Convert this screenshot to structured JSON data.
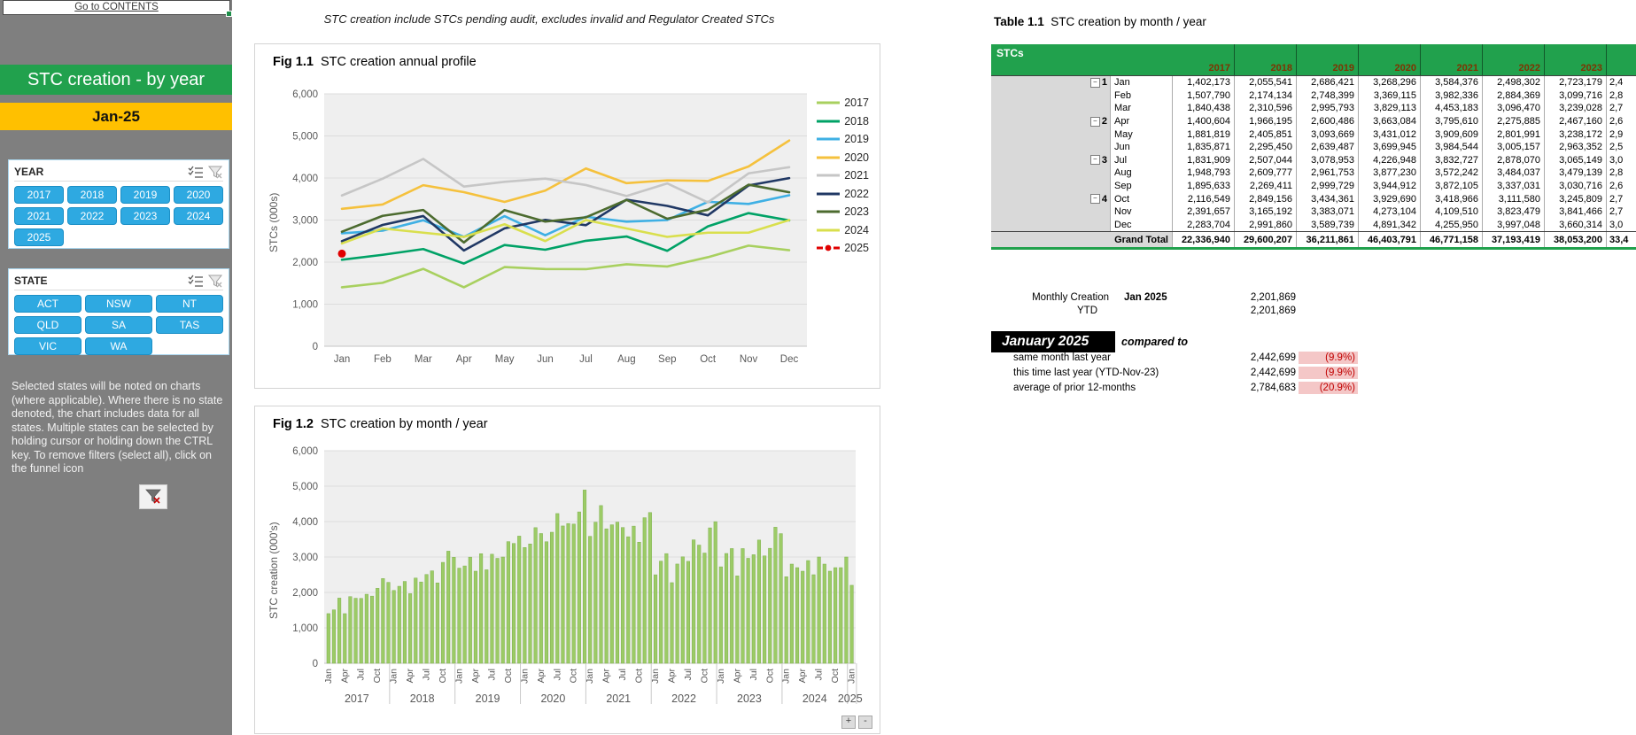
{
  "sidebar": {
    "contents_link": "Go to CONTENTS",
    "title": "STC creation - by year",
    "period": "Jan-25",
    "year_slicer": {
      "label": "YEAR",
      "options": [
        "2017",
        "2018",
        "2019",
        "2020",
        "2021",
        "2022",
        "2023",
        "2024",
        "2025"
      ]
    },
    "state_slicer": {
      "label": "STATE",
      "options": [
        "ACT",
        "NSW",
        "NT",
        "QLD",
        "SA",
        "TAS",
        "VIC",
        "WA"
      ]
    },
    "note": "Selected states will be noted on charts (where applicable).  Where there is no state denoted, the chart includes data for all states. Multiple states can be selected by holding cursor or holding down the CTRL key.  To remove filters (select all), click on the funnel icon"
  },
  "disclaimer": "STC creation include STCs pending audit, excludes invalid and Regulator Created STCs",
  "fig11": {
    "label": "Fig 1.1",
    "title": "STC creation annual profile",
    "ylabel": "STCs (000s)"
  },
  "fig12": {
    "label": "Fig 1.2",
    "title": "STC creation by month / year",
    "ylabel": "STC creation (000's)",
    "zoom_in": "+",
    "zoom_out": "-"
  },
  "table": {
    "label": "Table 1.1",
    "title": "STC creation by month / year",
    "corner": "STCs",
    "years": [
      "2017",
      "2018",
      "2019",
      "2020",
      "2021",
      "2022",
      "2023"
    ],
    "rows": [
      {
        "month": "Jan",
        "quarter": "1",
        "values": [
          "1,402,173",
          "2,055,541",
          "2,686,421",
          "3,268,296",
          "3,584,376",
          "2,498,302",
          "2,723,179"
        ],
        "clipped": "2,4"
      },
      {
        "month": "Feb",
        "quarter": "",
        "values": [
          "1,507,790",
          "2,174,134",
          "2,748,399",
          "3,369,115",
          "3,982,336",
          "2,884,369",
          "3,099,716"
        ],
        "clipped": "2,8"
      },
      {
        "month": "Mar",
        "quarter": "",
        "values": [
          "1,840,438",
          "2,310,596",
          "2,995,793",
          "3,829,113",
          "4,453,183",
          "3,096,470",
          "3,239,028"
        ],
        "clipped": "2,7"
      },
      {
        "month": "Apr",
        "quarter": "2",
        "values": [
          "1,400,604",
          "1,966,195",
          "2,600,486",
          "3,663,084",
          "3,795,610",
          "2,275,885",
          "2,467,160"
        ],
        "clipped": "2,6"
      },
      {
        "month": "May",
        "quarter": "",
        "values": [
          "1,881,819",
          "2,405,851",
          "3,093,669",
          "3,431,012",
          "3,909,609",
          "2,801,991",
          "3,238,172"
        ],
        "clipped": "2,9"
      },
      {
        "month": "Jun",
        "quarter": "",
        "values": [
          "1,835,871",
          "2,295,450",
          "2,639,487",
          "3,699,945",
          "3,984,544",
          "3,005,157",
          "2,963,352"
        ],
        "clipped": "2,5"
      },
      {
        "month": "Jul",
        "quarter": "3",
        "values": [
          "1,831,909",
          "2,507,044",
          "3,078,953",
          "4,226,948",
          "3,832,727",
          "2,878,070",
          "3,065,149"
        ],
        "clipped": "3,0"
      },
      {
        "month": "Aug",
        "quarter": "",
        "values": [
          "1,948,793",
          "2,609,777",
          "2,961,753",
          "3,877,230",
          "3,572,242",
          "3,484,037",
          "3,479,139"
        ],
        "clipped": "2,8"
      },
      {
        "month": "Sep",
        "quarter": "",
        "values": [
          "1,895,633",
          "2,269,411",
          "2,999,729",
          "3,944,912",
          "3,872,105",
          "3,337,031",
          "3,030,716"
        ],
        "clipped": "2,6"
      },
      {
        "month": "Oct",
        "quarter": "4",
        "values": [
          "2,116,549",
          "2,849,156",
          "3,434,361",
          "3,929,690",
          "3,418,966",
          "3,111,580",
          "3,245,809"
        ],
        "clipped": "2,7"
      },
      {
        "month": "Nov",
        "quarter": "",
        "values": [
          "2,391,657",
          "3,165,192",
          "3,383,071",
          "4,273,104",
          "4,109,510",
          "3,823,479",
          "3,841,466"
        ],
        "clipped": "2,7"
      },
      {
        "month": "Dec",
        "quarter": "",
        "values": [
          "2,283,704",
          "2,991,860",
          "3,589,739",
          "4,891,342",
          "4,255,950",
          "3,997,048",
          "3,660,314"
        ],
        "clipped": "3,0"
      }
    ],
    "grand_total_label": "Grand Total",
    "grand_totals": [
      "22,336,940",
      "29,600,207",
      "36,211,861",
      "46,403,791",
      "46,771,158",
      "37,193,419",
      "38,053,200"
    ],
    "clipped_total": "33,4"
  },
  "summary": {
    "monthly_label": "Monthly Creation",
    "monthly_period": "Jan 2025",
    "monthly_value": "2,201,869",
    "ytd_label": "YTD",
    "ytd_value": "2,201,869",
    "compare_header": "January 2025",
    "compare_suffix": "compared to",
    "rows": [
      {
        "label": "same month last year",
        "value": "2,442,699",
        "pct": "(9.9%)"
      },
      {
        "label": "this time last year (YTD-Nov-23)",
        "value": "2,442,699",
        "pct": "(9.9%)"
      },
      {
        "label": "average of prior 12-months",
        "value": "2,784,683",
        "pct": "(20.9%)"
      }
    ],
    "pct_bg": "#f4c7c7",
    "pct_color": "#c00000"
  },
  "colors": {
    "banner_green": "#21a14d",
    "banner_orange": "#ffc000",
    "slicer_blue": "#2ea9e1",
    "sidebar_gray": "#7f7f7f",
    "bar_green": "#9ccb66"
  },
  "chart_data": [
    {
      "id": "fig11",
      "type": "line",
      "title": "STC creation annual profile",
      "xlabel": "",
      "ylabel": "STCs (000s)",
      "categories": [
        "Jan",
        "Feb",
        "Mar",
        "Apr",
        "May",
        "Jun",
        "Jul",
        "Aug",
        "Sep",
        "Oct",
        "Nov",
        "Dec"
      ],
      "ylim": [
        0,
        6000
      ],
      "grid": true,
      "legend_position": "right",
      "series": [
        {
          "name": "2017",
          "color": "#a8d05f",
          "values": [
            1402,
            1508,
            1840,
            1401,
            1882,
            1836,
            1832,
            1949,
            1896,
            2117,
            2392,
            2284
          ]
        },
        {
          "name": "2018",
          "color": "#00a266",
          "values": [
            2056,
            2174,
            2311,
            1966,
            2406,
            2295,
            2507,
            2610,
            2269,
            2849,
            3165,
            2992
          ]
        },
        {
          "name": "2019",
          "color": "#3fb0e4",
          "values": [
            2686,
            2748,
            2996,
            2600,
            3094,
            2639,
            3079,
            2962,
            3000,
            3434,
            3383,
            3590
          ]
        },
        {
          "name": "2020",
          "color": "#f5c13d",
          "values": [
            3268,
            3369,
            3829,
            3663,
            3431,
            3700,
            4227,
            3877,
            3945,
            3930,
            4273,
            4891
          ]
        },
        {
          "name": "2021",
          "color": "#c6c6c6",
          "values": [
            3584,
            3982,
            4453,
            3796,
            3910,
            3985,
            3833,
            3572,
            3872,
            3419,
            4110,
            4256
          ]
        },
        {
          "name": "2022",
          "color": "#203864",
          "values": [
            2498,
            2884,
            3096,
            2276,
            2802,
            3005,
            2878,
            3484,
            3337,
            3112,
            3823,
            3997
          ]
        },
        {
          "name": "2023",
          "color": "#4c6b2f",
          "values": [
            2723,
            3100,
            3239,
            2467,
            3238,
            2963,
            3065,
            3479,
            3031,
            3246,
            3841,
            3660
          ]
        },
        {
          "name": "2024",
          "color": "#d9df4d",
          "values": [
            2443,
            2800,
            2700,
            2600,
            2900,
            2500,
            3000,
            2800,
            2600,
            2700,
            2700,
            3000
          ]
        },
        {
          "name": "2025",
          "color": "#e00000",
          "marker_only": true,
          "values": [
            2202,
            null,
            null,
            null,
            null,
            null,
            null,
            null,
            null,
            null,
            null,
            null
          ]
        }
      ]
    },
    {
      "id": "fig12",
      "type": "bar",
      "title": "STC creation by month / year",
      "xlabel": "",
      "ylabel": "STC creation (000's)",
      "ylim": [
        0,
        6000
      ],
      "grid": true,
      "bar_color": "#9ccb66",
      "bar_edge": "#7fb14e",
      "years": [
        "2017",
        "2018",
        "2019",
        "2020",
        "2021",
        "2022",
        "2023",
        "2024",
        "2025"
      ],
      "month_ticks": [
        "Jan",
        "Apr",
        "Jul",
        "Oct"
      ],
      "values_by_year": {
        "2017": [
          1402,
          1508,
          1840,
          1401,
          1882,
          1836,
          1832,
          1949,
          1896,
          2117,
          2392,
          2284
        ],
        "2018": [
          2056,
          2174,
          2311,
          1966,
          2406,
          2295,
          2507,
          2610,
          2269,
          2849,
          3165,
          2992
        ],
        "2019": [
          2686,
          2748,
          2996,
          2600,
          3094,
          2639,
          3079,
          2962,
          3000,
          3434,
          3383,
          3590
        ],
        "2020": [
          3268,
          3369,
          3829,
          3663,
          3431,
          3700,
          4227,
          3877,
          3945,
          3930,
          4273,
          4891
        ],
        "2021": [
          3584,
          3982,
          4453,
          3796,
          3910,
          3985,
          3833,
          3572,
          3872,
          3419,
          4110,
          4256
        ],
        "2022": [
          2498,
          2884,
          3096,
          2276,
          2802,
          3005,
          2878,
          3484,
          3337,
          3112,
          3823,
          3997
        ],
        "2023": [
          2723,
          3100,
          3239,
          2467,
          3238,
          2963,
          3065,
          3479,
          3031,
          3246,
          3841,
          3660
        ],
        "2024": [
          2443,
          2800,
          2700,
          2600,
          2900,
          2500,
          3000,
          2800,
          2600,
          2700,
          2700,
          3000
        ],
        "2025": [
          2202
        ]
      }
    }
  ]
}
